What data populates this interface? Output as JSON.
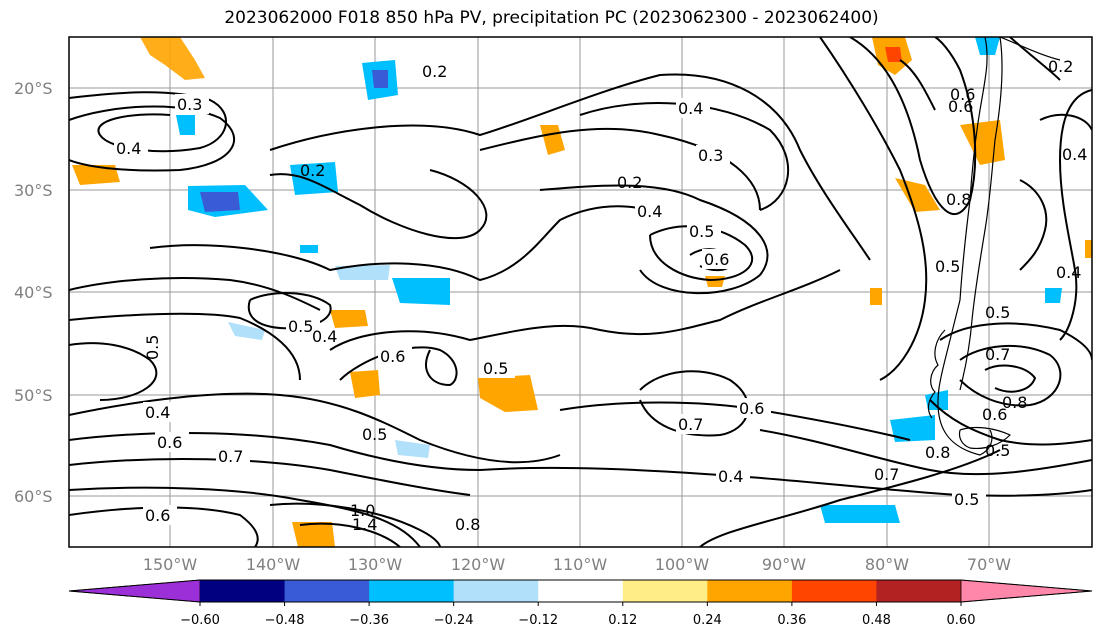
{
  "title": "2023062000 F018 850 hPa PV, precipitation PC (2023062300 - 2023062400)",
  "map": {
    "lat_ticks": [
      "20°S",
      "30°S",
      "40°S",
      "50°S",
      "60°S"
    ],
    "lon_ticks": [
      "150°W",
      "140°W",
      "130°W",
      "120°W",
      "110°W",
      "100°W",
      "90°W",
      "80°W",
      "70°W"
    ],
    "contour_labels": [
      "0.2",
      "0.3",
      "0.4",
      "0.2",
      "0.4",
      "0.3",
      "0.2",
      "0.4",
      "0.5",
      "0.6",
      "0.5",
      "0.4",
      "0.5",
      "0.6",
      "0.5",
      "0.4",
      "0.6",
      "0.7",
      "0.5",
      "0.7",
      "0.6",
      "0.6",
      "0.7",
      "0.4",
      "0.5",
      "0.8",
      "1.0",
      "1.4",
      "0.8",
      "0.6",
      "0.5",
      "0.7",
      "0.8",
      "0.6",
      "0.5",
      "0.5",
      "0.4",
      "0.2",
      "0.4",
      "0.8",
      "0.6"
    ]
  },
  "colorbar": {
    "colors": [
      "#9b30d9",
      "#000080",
      "#3a5bd6",
      "#00bfff",
      "#b0e0fa",
      "#ffffff",
      "#ffee88",
      "#ffa500",
      "#ff4500",
      "#b22222",
      "#ff88aa"
    ],
    "labels": [
      "−0.60",
      "−0.48",
      "−0.36",
      "−0.24",
      "−0.12",
      "0.12",
      "0.24",
      "0.36",
      "0.48",
      "0.60"
    ]
  }
}
